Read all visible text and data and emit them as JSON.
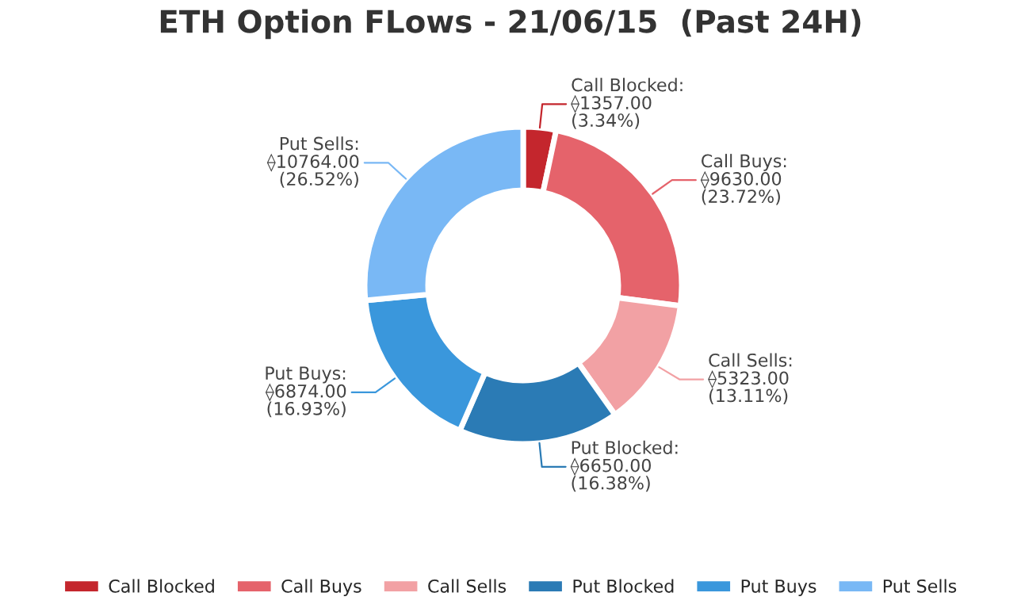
{
  "chart_data": {
    "type": "donut",
    "title": "ETH Option FLows - 21/06/15  (Past 24H)",
    "categories": [
      "Call Blocked",
      "Call Buys",
      "Call Sells",
      "Put Blocked",
      "Put Buys",
      "Put Sells"
    ],
    "values": [
      1357,
      9630,
      5323,
      6650,
      6874,
      10764
    ],
    "value_labels": [
      "Call Blocked:\n⟠1357.00\n(3.34%)",
      "Call Buys:\n⟠9630.00\n(23.72%)",
      "Call Sells:\n⟠5323.00\n(13.11%)",
      "Put Blocked:\n⟠6650.00\n(16.38%)",
      "Put Buys:\n⟠6874.00\n(16.93%)",
      "Put Sells:\n⟠10764.00\n(26.52%)"
    ],
    "colors": [
      "#c4262d",
      "#e5636b",
      "#f2a1a4",
      "#2b7bb5",
      "#3a97dc",
      "#79b8f5"
    ],
    "legend": "bottom"
  }
}
